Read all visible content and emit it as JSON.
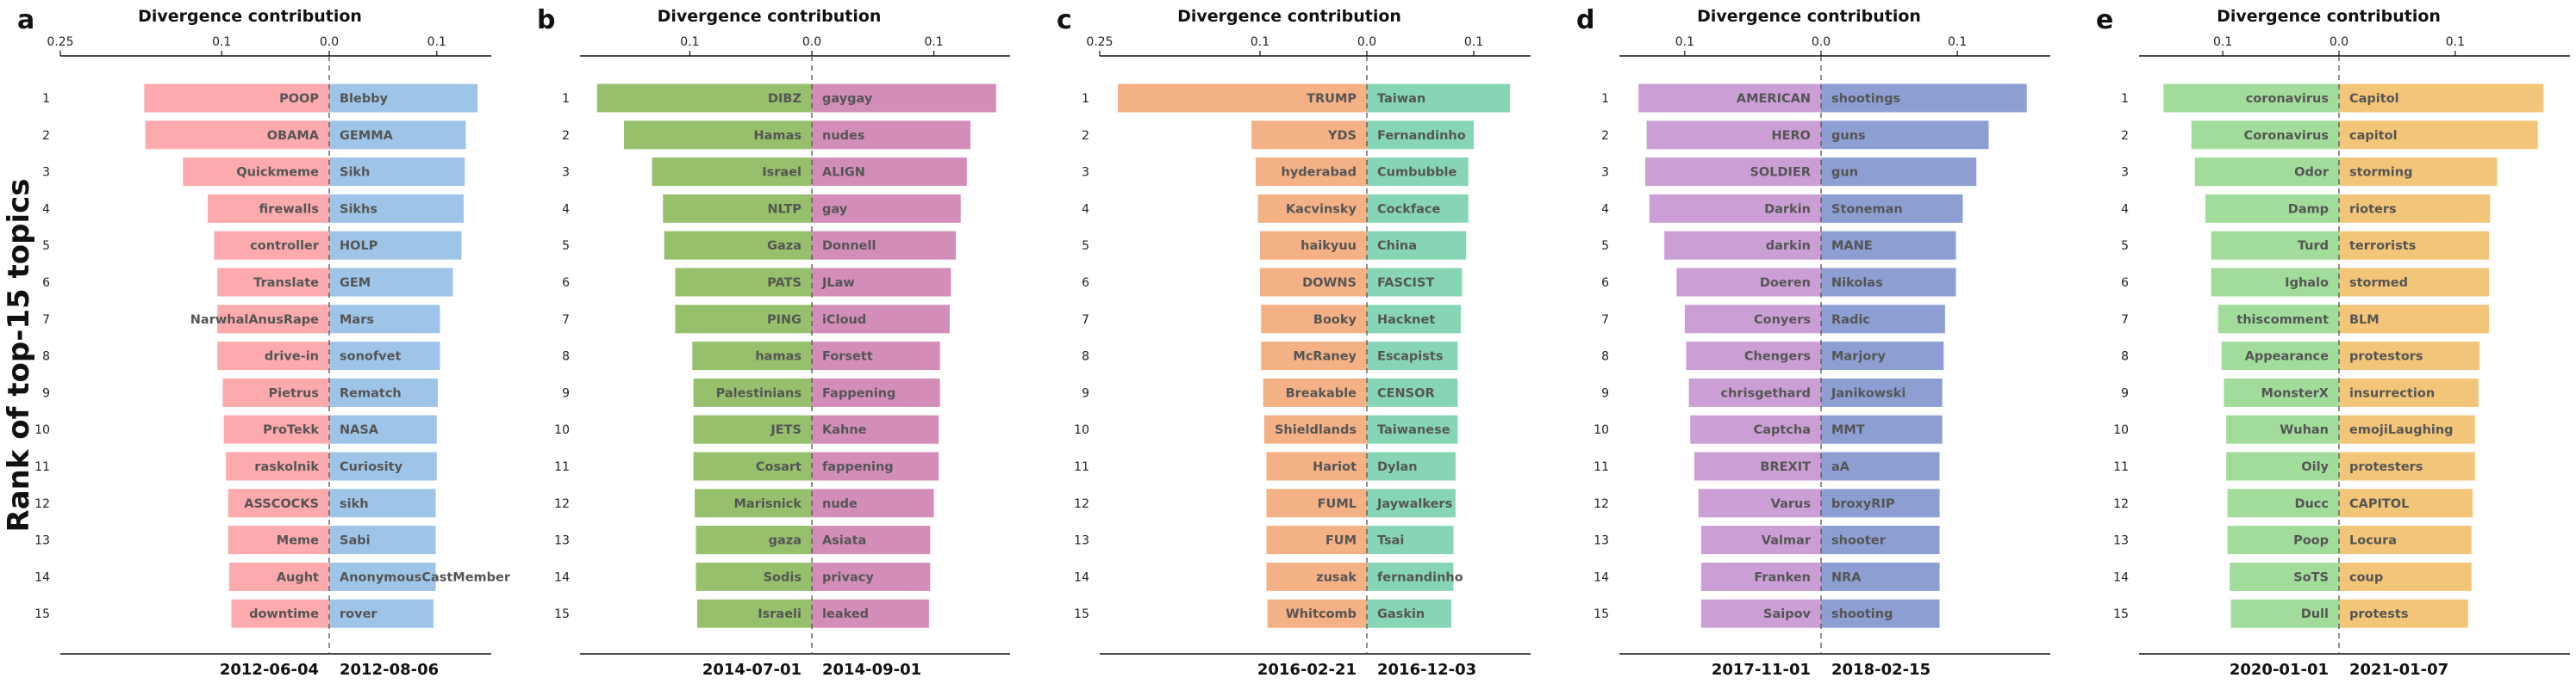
{
  "figure": {
    "ylabel": "Rank of top-15 topics"
  },
  "chart_data": [
    {
      "type": "bar",
      "panel": "a",
      "title": "Divergence contribution",
      "xticks": [
        {
          "v": -0.25,
          "label": "0.25"
        },
        {
          "v": -0.1,
          "label": "0.1"
        },
        {
          "v": 0,
          "label": "0.0"
        },
        {
          "v": 0.1,
          "label": "0.1"
        }
      ],
      "xlim": [
        -0.25,
        0.15
      ],
      "left_date": "2012-06-04",
      "right_date": "2012-08-06",
      "left_color": "#fdaaae",
      "right_color": "#9ec5e8",
      "ranks": [
        1,
        2,
        3,
        4,
        5,
        6,
        7,
        8,
        9,
        10,
        11,
        12,
        13,
        14,
        15
      ],
      "left_words": [
        "POOP",
        "OBAMA",
        "Quickmeme",
        "firewalls",
        "controller",
        "Translate",
        "NarwhalAnusRape",
        "drive-in",
        "Pietrus",
        "ProTekk",
        "raskolnik",
        "ASSCOCKS",
        "Meme",
        "Aught",
        "downtime"
      ],
      "left_values": [
        0.172,
        0.171,
        0.136,
        0.113,
        0.107,
        0.104,
        0.104,
        0.104,
        0.099,
        0.098,
        0.096,
        0.094,
        0.094,
        0.093,
        0.091
      ],
      "right_words": [
        "Blebby",
        "GEMMA",
        "Sikh",
        "Sikhs",
        "HOLP",
        "GEM",
        "Mars",
        "sonofvet",
        "Rematch",
        "NASA",
        "Curiosity",
        "sikh",
        "Sabi",
        "AnonymousCastMember",
        "rover"
      ],
      "right_values": [
        0.138,
        0.127,
        0.126,
        0.125,
        0.123,
        0.115,
        0.103,
        0.103,
        0.101,
        0.1,
        0.1,
        0.099,
        0.099,
        0.099,
        0.097
      ]
    },
    {
      "type": "bar",
      "panel": "b",
      "title": "Divergence contribution",
      "xticks": [
        {
          "v": -0.1,
          "label": "0.1"
        },
        {
          "v": 0,
          "label": "0.0"
        },
        {
          "v": 0.1,
          "label": "0.1"
        }
      ],
      "xlim": [
        -0.19,
        0.165
      ],
      "left_date": "2014-07-01",
      "right_date": "2014-09-01",
      "left_color": "#96c06b",
      "right_color": "#d38db9",
      "ranks": [
        1,
        2,
        3,
        4,
        5,
        6,
        7,
        8,
        9,
        10,
        11,
        12,
        13,
        14,
        15
      ],
      "left_words": [
        "DIBZ",
        "Hamas",
        "Israel",
        "NLTP",
        "Gaza",
        "PATS",
        "PING",
        "hamas",
        "Palestinians",
        "JETS",
        "Cosart",
        "Marisnick",
        "gaza",
        "Sodis",
        "Israeli"
      ],
      "left_values": [
        0.176,
        0.154,
        0.131,
        0.122,
        0.121,
        0.112,
        0.112,
        0.098,
        0.097,
        0.097,
        0.097,
        0.096,
        0.095,
        0.095,
        0.094
      ],
      "right_words": [
        "gaygay",
        "nudes",
        "ALIGN",
        "gay",
        "Donnell",
        "JLaw",
        "iCloud",
        "Forsett",
        "Fappening",
        "Kahne",
        "fappening",
        "nude",
        "Asiata",
        "privacy",
        "leaked"
      ],
      "right_values": [
        0.151,
        0.13,
        0.127,
        0.122,
        0.118,
        0.114,
        0.113,
        0.105,
        0.105,
        0.104,
        0.104,
        0.1,
        0.097,
        0.097,
        0.096
      ]
    },
    {
      "type": "bar",
      "panel": "c",
      "title": "Divergence contribution",
      "xticks": [
        {
          "v": -0.25,
          "label": "0.25"
        },
        {
          "v": -0.1,
          "label": "0.1"
        },
        {
          "v": 0,
          "label": "0.0"
        },
        {
          "v": 0.1,
          "label": "0.1"
        }
      ],
      "xlim": [
        -0.25,
        0.15
      ],
      "left_date": "2016-02-21",
      "right_date": "2016-12-03",
      "left_color": "#f4b185",
      "right_color": "#86d5b5",
      "ranks": [
        1,
        2,
        3,
        4,
        5,
        6,
        7,
        8,
        9,
        10,
        11,
        12,
        13,
        14,
        15
      ],
      "left_words": [
        "TRUMP",
        "YDS",
        "hyderabad",
        "Kacvinsky",
        "haikyuu",
        "DOWNS",
        "Booky",
        "McRaney",
        "Breakable",
        "Shieldlands",
        "Hariot",
        "FUML",
        "FUM",
        "zusak",
        "Whitcomb"
      ],
      "left_values": [
        0.233,
        0.108,
        0.104,
        0.102,
        0.1,
        0.1,
        0.099,
        0.099,
        0.097,
        0.096,
        0.094,
        0.094,
        0.094,
        0.094,
        0.093
      ],
      "right_words": [
        "Taiwan",
        "Fernandinho",
        "Cumbubble",
        "Cockface",
        "China",
        "FASCIST",
        "Hacknet",
        "Escapists",
        "CENSOR",
        "Taiwanese",
        "Dylan",
        "Jaywalkers",
        "Tsai",
        "fernandinho",
        "Gaskin"
      ],
      "right_values": [
        0.134,
        0.1,
        0.095,
        0.095,
        0.093,
        0.089,
        0.088,
        0.085,
        0.085,
        0.085,
        0.083,
        0.083,
        0.081,
        0.081,
        0.079
      ]
    },
    {
      "type": "bar",
      "panel": "d",
      "title": "Divergence contribution",
      "xticks": [
        {
          "v": -0.1,
          "label": "0.1"
        },
        {
          "v": 0,
          "label": "0.0"
        },
        {
          "v": 0.1,
          "label": "0.1"
        }
      ],
      "xlim": [
        -0.148,
        0.165
      ],
      "left_date": "2017-11-01",
      "right_date": "2018-02-15",
      "left_color": "#cb9fd6",
      "right_color": "#8d9ed3",
      "ranks": [
        1,
        2,
        3,
        4,
        5,
        6,
        7,
        8,
        9,
        10,
        11,
        12,
        13,
        14,
        15
      ],
      "left_words": [
        "AMERICAN",
        "HERO",
        "SOLDIER",
        "Darkin",
        "darkin",
        "Doeren",
        "Conyers",
        "Chengers",
        "chrisgethard",
        "Captcha",
        "BREXIT",
        "Varus",
        "Valmar",
        "Franken",
        "Saipov"
      ],
      "left_values": [
        0.134,
        0.128,
        0.129,
        0.126,
        0.115,
        0.106,
        0.1,
        0.099,
        0.097,
        0.096,
        0.093,
        0.09,
        0.088,
        0.088,
        0.088
      ],
      "right_words": [
        "shootings",
        "guns",
        "gun",
        "Stoneman",
        "MANE",
        "Nikolas",
        "Radic",
        "Marjory",
        "Janikowski",
        "MMT",
        "aA",
        "broxyRIP",
        "shooter",
        "NRA",
        "shooting"
      ],
      "right_values": [
        0.151,
        0.123,
        0.114,
        0.104,
        0.099,
        0.099,
        0.091,
        0.09,
        0.089,
        0.089,
        0.087,
        0.087,
        0.087,
        0.087,
        0.087
      ]
    },
    {
      "type": "bar",
      "panel": "e",
      "title": "Divergence contribution",
      "xticks": [
        {
          "v": -0.1,
          "label": "0.1"
        },
        {
          "v": 0,
          "label": "0.0"
        },
        {
          "v": 0.1,
          "label": "0.1"
        }
      ],
      "xlim": [
        -0.172,
        0.165
      ],
      "left_date": "2020-01-01",
      "right_date": "2021-01-07",
      "left_color": "#a1dc9b",
      "right_color": "#f3c578",
      "ranks": [
        1,
        2,
        3,
        4,
        5,
        6,
        7,
        8,
        9,
        10,
        11,
        12,
        13,
        14,
        15
      ],
      "left_words": [
        "coronavirus",
        "Coronavirus",
        "Odor",
        "Damp",
        "Turd",
        "Ighalo",
        "thiscomment",
        "Appearance",
        "MonsterX",
        "Wuhan",
        "Oily",
        "Ducc",
        "Poop",
        "SoTS",
        "Dull"
      ],
      "left_values": [
        0.151,
        0.127,
        0.124,
        0.115,
        0.11,
        0.11,
        0.104,
        0.101,
        0.099,
        0.097,
        0.097,
        0.096,
        0.096,
        0.094,
        0.093
      ],
      "right_words": [
        "Capitol",
        "capitol",
        "storming",
        "rioters",
        "terrorists",
        "stormed",
        "BLM",
        "protestors",
        "insurrection",
        "emojiLaughing",
        "protesters",
        "CAPITOL",
        "Locura",
        "coup",
        "protests"
      ],
      "right_values": [
        0.176,
        0.171,
        0.136,
        0.13,
        0.129,
        0.129,
        0.129,
        0.121,
        0.12,
        0.117,
        0.117,
        0.115,
        0.114,
        0.114,
        0.111
      ]
    }
  ]
}
